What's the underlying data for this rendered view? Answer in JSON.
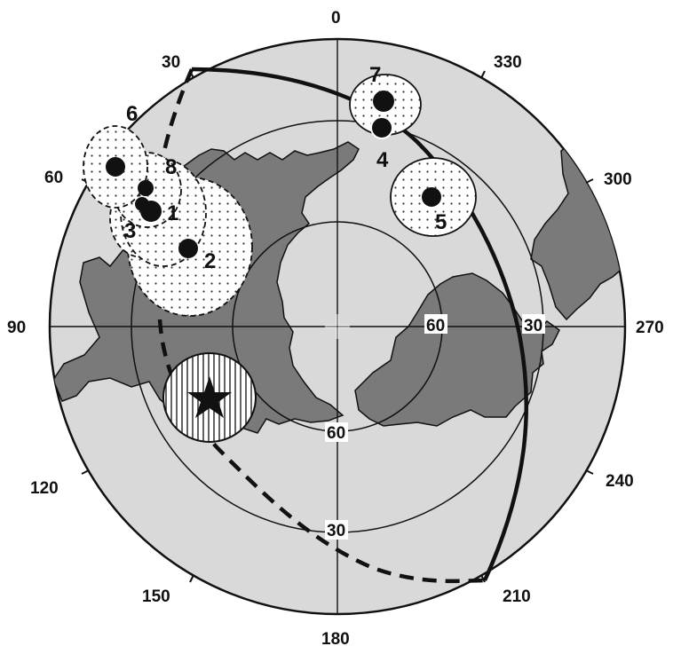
{
  "projection": "polar",
  "colors": {
    "background": "#d9d9d9",
    "land": "#7a7a7a",
    "ink": "#111111",
    "ellipse_fill": "#ffffff"
  },
  "azimuth_labels": {
    "a0": "0",
    "a30": "30",
    "a60": "60",
    "a90": "90",
    "a120": "120",
    "a150": "150",
    "a180": "180",
    "a210": "210",
    "a240": "240",
    "a270": "270",
    "a300": "300",
    "a330": "330"
  },
  "latitude_labels": {
    "right_60": "60",
    "right_30": "30",
    "bottom_60": "60",
    "bottom_30": "30"
  },
  "poles": {
    "p1": "1",
    "p2": "2",
    "p3": "3",
    "p4": "4",
    "p5": "5",
    "p6": "6",
    "p7": "7",
    "p8": "8"
  },
  "reference_marker": "star-icon"
}
